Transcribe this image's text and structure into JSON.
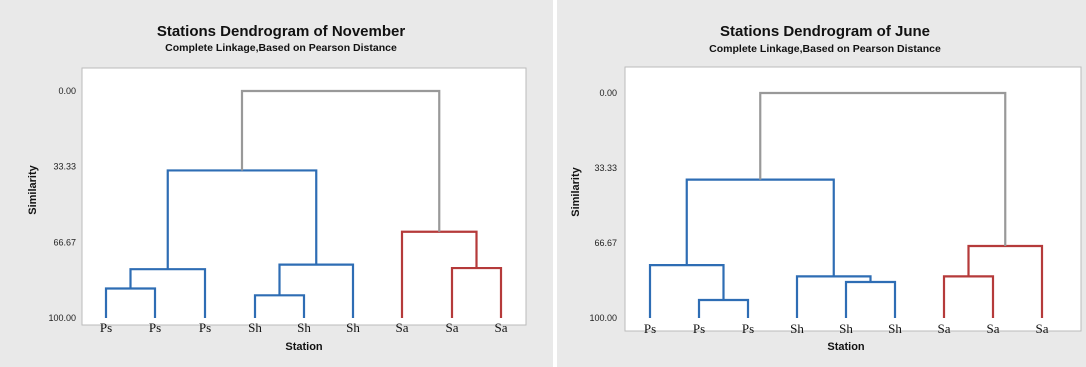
{
  "chart_data": [
    {
      "type": "dendrogram",
      "title": "Stations Dendrogram of November",
      "subtitle": "Complete Linkage,Based on Pearson Distance",
      "xlabel": "Station",
      "ylabel": "Similarity",
      "yticks": [
        "0.00",
        "33.33",
        "66.67",
        "100.00"
      ],
      "ylim": [
        100,
        0
      ],
      "leaves": [
        "Ps",
        "Ps",
        "Ps",
        "Sh",
        "Sh",
        "Sh",
        "Sa",
        "Sa",
        "Sa"
      ],
      "merges": [
        {
          "a": 3,
          "b": 4,
          "sim": 90,
          "color": "#2e6db4"
        },
        {
          "a": 0,
          "b": 1,
          "sim": 87,
          "color": "#2e6db4"
        },
        {
          "a": 7,
          "b": 8,
          "sim": 78,
          "color": "#b53a3a"
        },
        {
          "a": 9,
          "b": 5,
          "sim": 76.5,
          "color": "#2e6db4"
        },
        {
          "a": 10,
          "b": 2,
          "sim": 78.5,
          "color": "#2e6db4"
        },
        {
          "a": 6,
          "b": 11,
          "sim": 62,
          "color": "#b53a3a"
        },
        {
          "a": 13,
          "b": 12,
          "sim": 35,
          "color": "#2e6db4"
        },
        {
          "a": 15,
          "b": 14,
          "sim": 0,
          "color": "#999999"
        }
      ]
    },
    {
      "type": "dendrogram",
      "title": "Stations Dendrogram of June",
      "subtitle": "Complete Linkage,Based on Pearson Distance",
      "xlabel": "Station",
      "ylabel": "Similarity",
      "yticks": [
        "0.00",
        "33.33",
        "66.67",
        "100.00"
      ],
      "ylim": [
        100,
        0
      ],
      "leaves": [
        "Ps",
        "Ps",
        "Ps",
        "Sh",
        "Sh",
        "Sh",
        "Sa",
        "Sa",
        "Sa"
      ],
      "merges": [
        {
          "a": 1,
          "b": 2,
          "sim": 92,
          "color": "#2e6db4"
        },
        {
          "a": 4,
          "b": 5,
          "sim": 84,
          "color": "#2e6db4"
        },
        {
          "a": 6,
          "b": 7,
          "sim": 81.5,
          "color": "#b53a3a"
        },
        {
          "a": 3,
          "b": 10,
          "sim": 81.5,
          "color": "#2e6db4"
        },
        {
          "a": 0,
          "b": 9,
          "sim": 76.5,
          "color": "#2e6db4"
        },
        {
          "a": 11,
          "b": 8,
          "sim": 68,
          "color": "#b53a3a"
        },
        {
          "a": 13,
          "b": 12,
          "sim": 38.5,
          "color": "#2e6db4"
        },
        {
          "a": 15,
          "b": 14,
          "sim": 0,
          "color": "#999999"
        }
      ]
    }
  ]
}
